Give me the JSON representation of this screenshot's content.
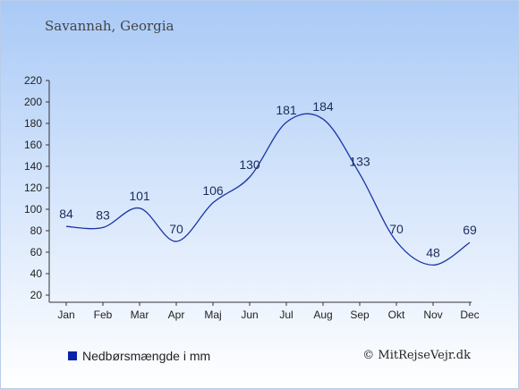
{
  "header": {
    "title": "Savannah, Georgia"
  },
  "legend": {
    "label": "Nedbørsmængde i mm",
    "color": "#0b23a8"
  },
  "footer": {
    "copyright": "© MitRejseVejr.dk"
  },
  "colors": {
    "line": "#1b34a6",
    "axis": "#333333",
    "label": "#1b2c5c"
  },
  "chart_data": {
    "type": "line",
    "title": "Savannah, Georgia",
    "xlabel": "",
    "ylabel": "",
    "categories": [
      "Jan",
      "Feb",
      "Mar",
      "Apr",
      "Maj",
      "Jun",
      "Jul",
      "Aug",
      "Sep",
      "Okt",
      "Nov",
      "Dec"
    ],
    "series": [
      {
        "name": "Nedbørsmængde i mm",
        "values": [
          84,
          83,
          101,
          70,
          106,
          130,
          181,
          184,
          133,
          70,
          48,
          69
        ]
      }
    ],
    "yticks": [
      20,
      40,
      60,
      80,
      100,
      120,
      140,
      160,
      180,
      200,
      220
    ],
    "ylim": [
      20,
      220
    ],
    "grid": false,
    "legend_position": "bottom-left"
  }
}
